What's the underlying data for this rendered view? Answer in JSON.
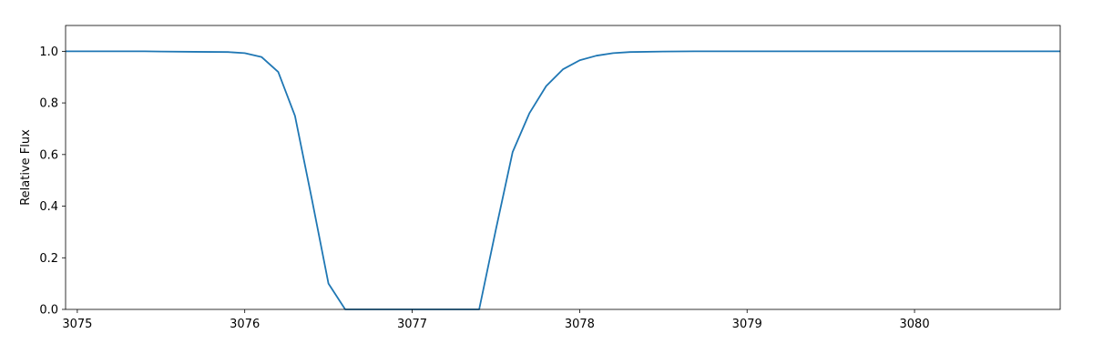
{
  "chart_data": {
    "type": "line",
    "title": "",
    "xlabel": "",
    "ylabel": "Relative Flux",
    "xlim": [
      3074.93,
      3080.87
    ],
    "ylim": [
      0.0,
      1.1
    ],
    "grid": false,
    "x_ticks": [
      3075,
      3076,
      3077,
      3078,
      3079,
      3080
    ],
    "x_tick_labels": [
      "3075",
      "3076",
      "3077",
      "3078",
      "3079",
      "3080"
    ],
    "y_ticks": [
      0.0,
      0.2,
      0.4,
      0.6,
      0.8,
      1.0
    ],
    "y_tick_labels": [
      "0.0",
      "0.2",
      "0.4",
      "0.6",
      "0.8",
      "1.0"
    ],
    "series": [
      {
        "color": "#1f77b4",
        "x": [
          3074.93,
          3075.4,
          3075.5,
          3075.7,
          3075.9,
          3076.0,
          3076.1,
          3076.2,
          3076.3,
          3076.4,
          3076.5,
          3076.6,
          3077.0,
          3077.4,
          3077.5,
          3077.6,
          3077.7,
          3077.8,
          3077.9,
          3078.0,
          3078.1,
          3078.2,
          3078.3,
          3078.5,
          3078.7,
          3079.0,
          3080.0,
          3080.87
        ],
        "y": [
          1.0,
          1.0,
          0.999,
          0.998,
          0.997,
          0.993,
          0.978,
          0.92,
          0.75,
          0.43,
          0.1,
          0.0,
          0.0,
          0.0,
          0.31,
          0.61,
          0.76,
          0.865,
          0.93,
          0.965,
          0.983,
          0.993,
          0.997,
          0.999,
          1.0,
          1.0,
          1.0,
          1.0
        ]
      }
    ]
  }
}
